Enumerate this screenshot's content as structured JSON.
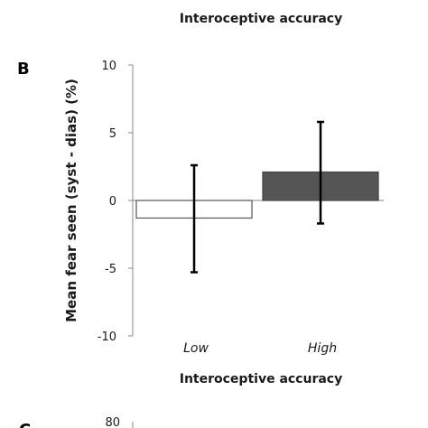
{
  "top_title": "Interoceptive accuracy",
  "panel_b": "B",
  "panel_c": "C",
  "chart_data": {
    "type": "bar",
    "title": "",
    "xlabel": "Interoceptive accuracy",
    "ylabel": "Mean fear seen (syst - dias) (%)",
    "categories": [
      "Low",
      "High"
    ],
    "values": [
      -1.3,
      2.1
    ],
    "error": [
      {
        "low": -5.3,
        "high": 2.6
      },
      {
        "low": -1.7,
        "high": 5.8
      }
    ],
    "bar_colors": [
      "#ffffff",
      "#555555"
    ],
    "ylim": [
      -10,
      10
    ],
    "yticks": [
      10,
      5,
      0,
      -5,
      -10
    ],
    "grid": false,
    "legend": "none"
  },
  "next_panel_tick": "80"
}
